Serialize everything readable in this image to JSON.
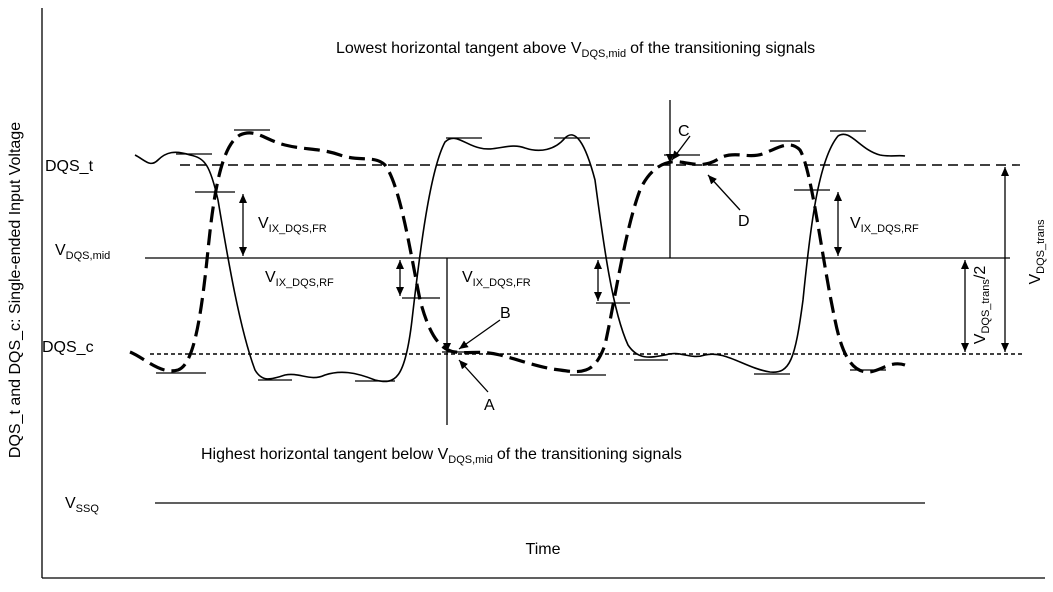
{
  "y_axis_label": "DQS_t and DQS_c: Single-ended Input Voltage",
  "x_axis_label": "Time",
  "signals": {
    "dqs_t": "DQS_t",
    "dqs_c": "DQS_c"
  },
  "levels": {
    "vdqs_mid": {
      "symbol": "V",
      "subscript": "DQS,mid"
    },
    "vssq": {
      "symbol": "V",
      "subscript": "SSQ"
    }
  },
  "notes": [
    {
      "before": "Lowest horizontal tangent above V",
      "subscript": "DQS,mid",
      "after": "of the transitioning signals"
    },
    {
      "before": "Highest horizontal tangent below V",
      "subscript": "DQS,mid",
      "after": "of the transitioning signals"
    }
  ],
  "measurements": [
    {
      "symbol": "V",
      "subscript": "IX_DQS,FR"
    },
    {
      "symbol": "V",
      "subscript": "IX_DQS,RF"
    },
    {
      "symbol": "V",
      "subscript": "IX_DQS,FR"
    },
    {
      "symbol": "V",
      "subscript": "IX_DQS,RF"
    }
  ],
  "swing": {
    "full": {
      "symbol": "V",
      "subscript": "DQS_trans"
    },
    "half": {
      "symbol": "V",
      "subscript": "DQS_trans",
      "suffix": "/2"
    }
  },
  "points": [
    "A",
    "B",
    "C",
    "D"
  ]
}
